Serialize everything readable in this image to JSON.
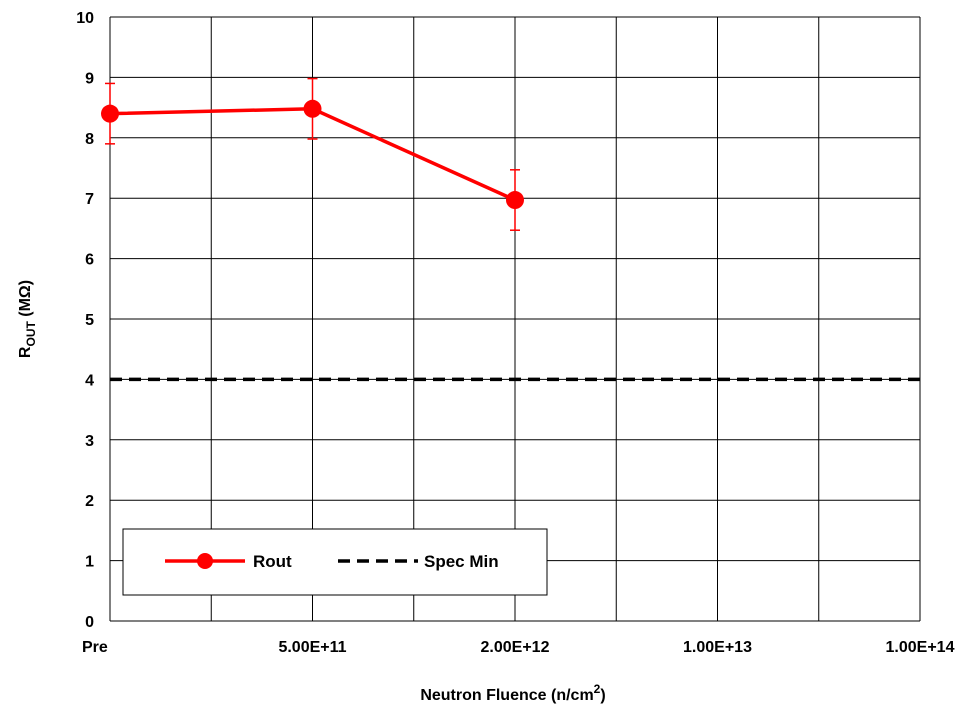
{
  "chart_data": {
    "type": "line",
    "xlabel": "Neutron Fluence (n/cm",
    "xlabel_superscript": "2",
    "xlabel_suffix": ")",
    "ylabel_main": "R",
    "ylabel_sub": "OUT",
    "ylabel_suffix": " (MΩ)",
    "categories": [
      "Pre",
      "5.00E+11",
      "2.00E+12",
      "1.00E+13",
      "1.00E+14"
    ],
    "ylim": [
      0,
      10
    ],
    "yticks": [
      "0",
      "1",
      "2",
      "3",
      "4",
      "5",
      "6",
      "7",
      "8",
      "9",
      "10"
    ],
    "grid": true,
    "legend_position": "bottom-left",
    "series": [
      {
        "name": "Rout",
        "color": "#ff0000",
        "style": "solid-with-markers",
        "points": [
          {
            "category": "Pre",
            "y": 8.4,
            "err": 0.5
          },
          {
            "category": "5.00E+11",
            "y": 8.48,
            "err": 0.5
          },
          {
            "category": "2.00E+12",
            "y": 6.97,
            "err": 0.5
          }
        ]
      },
      {
        "name": "Spec Min",
        "color": "#000000",
        "style": "dashed",
        "constant": 4
      }
    ]
  }
}
